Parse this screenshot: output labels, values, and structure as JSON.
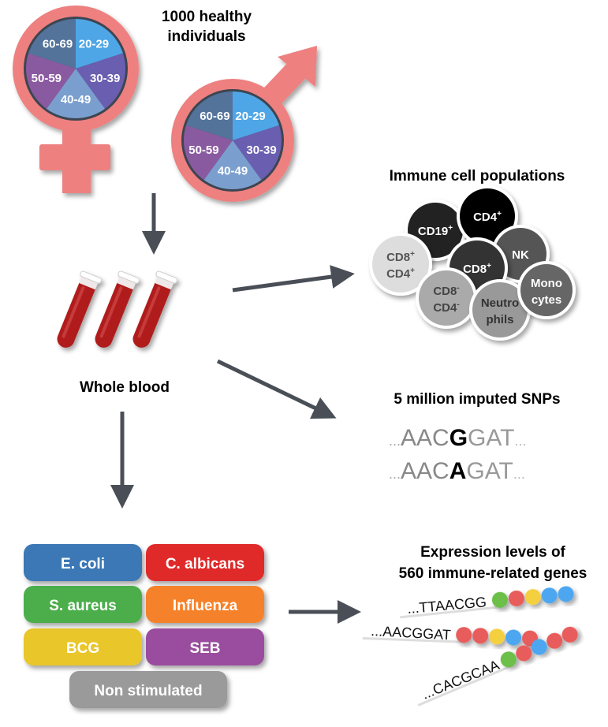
{
  "cohort": {
    "title_line1": "1000 healthy",
    "title_line2": "individuals",
    "age_groups": [
      "20-29",
      "30-39",
      "40-49",
      "50-59",
      "60-69"
    ],
    "age_colors": [
      "#4ea6e6",
      "#6a5eb0",
      "#7a9fcf",
      "#8a5aa0",
      "#53739b"
    ],
    "symbol_color": "#ee8080"
  },
  "sample": {
    "label": "Whole blood",
    "tube_color": "#b01c1c"
  },
  "immune": {
    "title": "Immune cell populations",
    "cells": [
      {
        "label1": "CD19",
        "sup1": "+",
        "label2": "",
        "sup2": "",
        "fill": "#222222",
        "text": "#ffffff"
      },
      {
        "label1": "CD4",
        "sup1": "+",
        "label2": "",
        "sup2": "",
        "fill": "#000000",
        "text": "#ffffff"
      },
      {
        "label1": "NK",
        "sup1": "",
        "label2": "",
        "sup2": "",
        "fill": "#555555",
        "text": "#ffffff"
      },
      {
        "label1": "CD8",
        "sup1": "+",
        "label2": "CD4",
        "sup2": "+",
        "fill": "#dddddd",
        "text": "#555555"
      },
      {
        "label1": "CD8",
        "sup1": "+",
        "label2": "",
        "sup2": "",
        "fill": "#333333",
        "text": "#ffffff"
      },
      {
        "label1": "CD8",
        "sup1": "-",
        "label2": "CD4",
        "sup2": "-",
        "fill": "#aaaaaa",
        "text": "#444444"
      },
      {
        "label1": "Neutro",
        "sup1": "",
        "label2": "phils",
        "sup2": "",
        "fill": "#999999",
        "text": "#333333"
      },
      {
        "label1": "Mono",
        "sup1": "",
        "label2": "cytes",
        "sup2": "",
        "fill": "#666666",
        "text": "#ffffff"
      }
    ]
  },
  "snps": {
    "title": "5 million imputed SNPs",
    "seq1": {
      "pre": "...",
      "left": "AAC",
      "snp": "G",
      "right": "GAT",
      "post": "..."
    },
    "seq2": {
      "pre": "...",
      "left": "AAC",
      "snp": "A",
      "right": "GAT",
      "post": "..."
    }
  },
  "stimuli": [
    {
      "label": "E. coli",
      "color": "#3a78b5"
    },
    {
      "label": "C. albicans",
      "color": "#e02a2a"
    },
    {
      "label": "S. aureus",
      "color": "#4cae4c"
    },
    {
      "label": "Influenza",
      "color": "#f5822a"
    },
    {
      "label": "BCG",
      "color": "#e9c62a"
    },
    {
      "label": "SEB",
      "color": "#9a4e9e"
    },
    {
      "label": "Non stimulated",
      "color": "#9a9a9a"
    }
  ],
  "expression": {
    "title_line1": "Expression levels of",
    "title_line2": "560 immune-related genes",
    "genes": [
      {
        "seq": "...TTAACGG",
        "beads": [
          "#6cbf4a",
          "#e85c5c",
          "#f4d03f",
          "#4da6f0",
          "#4da6f0"
        ]
      },
      {
        "seq": "...AACGGAT",
        "beads": [
          "#e85c5c",
          "#e85c5c",
          "#f4d03f",
          "#4da6f0",
          "#e85c5c"
        ]
      },
      {
        "seq": "...CACGCAA",
        "beads": [
          "#6cbf4a",
          "#e85c5c",
          "#4da6f0",
          "#e85c5c",
          "#e85c5c"
        ]
      }
    ]
  }
}
